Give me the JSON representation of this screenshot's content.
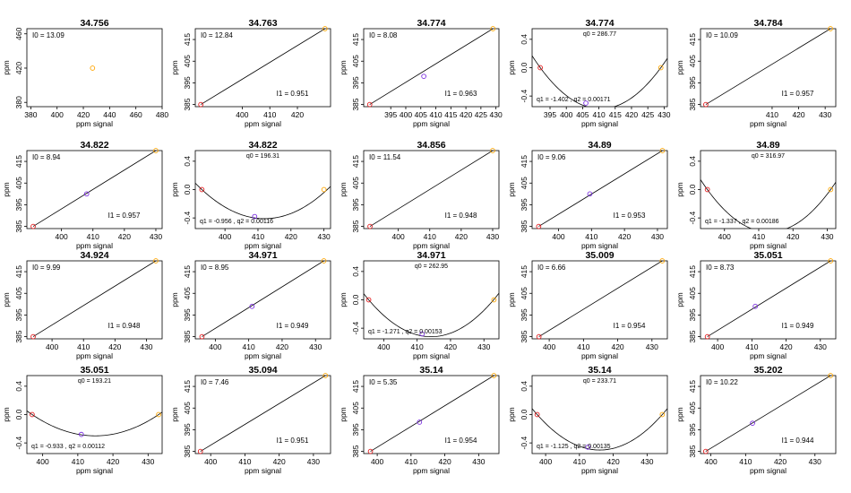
{
  "figure": {
    "xlabel": "ppm signal",
    "ylabel": "ppm"
  },
  "colors": {
    "red": "#e41a1c",
    "purple": "#7b2fe0",
    "orange": "#ffa500",
    "line": "#000000"
  },
  "chart_data": [
    {
      "type": "scatter",
      "title": "34.756",
      "xlim": [
        377,
        480
      ],
      "ylim": [
        375,
        466
      ],
      "xticks": [
        "380",
        "400",
        "420",
        "440",
        "460",
        "480"
      ],
      "yticks": [
        "380",
        "420",
        "460"
      ],
      "annotations": {
        "I0": "I0 =  13.09"
      },
      "points": [
        {
          "x": 427,
          "y": 420,
          "color": "orange"
        }
      ]
    },
    {
      "type": "line",
      "title": "34.763",
      "xlim": [
        383,
        432
      ],
      "ylim": [
        384,
        420
      ],
      "xticks": [
        "400",
        "410",
        "420"
      ],
      "yticks": [
        "385",
        "395",
        "405",
        "415"
      ],
      "annotations": {
        "I0": "I0 =  12.84",
        "I1": "I1 =  0.951"
      },
      "points": [
        {
          "x": 385,
          "y": 385,
          "color": "red"
        },
        {
          "x": 430,
          "y": 420,
          "color": "orange"
        }
      ],
      "curve": {
        "kind": "linear",
        "x0": 385,
        "y0": 385,
        "x1": 430,
        "y1": 420
      }
    },
    {
      "type": "line",
      "title": "34.774",
      "xlim": [
        386,
        431
      ],
      "ylim": [
        384,
        420
      ],
      "xticks": [
        "395",
        "400",
        "405",
        "410",
        "415",
        "420",
        "425",
        "430"
      ],
      "yticks": [
        "385",
        "395",
        "405",
        "415"
      ],
      "annotations": {
        "I0": "I0 =  8.08",
        "I1": "I1 =  0.963"
      },
      "points": [
        {
          "x": 388,
          "y": 385,
          "color": "red"
        },
        {
          "x": 406,
          "y": 398,
          "color": "purple"
        },
        {
          "x": 429,
          "y": 420,
          "color": "orange"
        }
      ],
      "curve": {
        "kind": "linear",
        "x0": 388,
        "y0": 385,
        "x1": 429,
        "y1": 420
      }
    },
    {
      "type": "line",
      "title": "34.774",
      "xlim": [
        389.5,
        431
      ],
      "ylim": [
        -0.55,
        0.55
      ],
      "xticks": [
        "395",
        "400",
        "405",
        "410",
        "415",
        "420",
        "425",
        "430"
      ],
      "yticks": [
        "-0.4",
        "0.0",
        "0.4"
      ],
      "annotations": {
        "q0": "q0 =  286.77",
        "q12": "q1 = -1.402 , q2 =  0.00171"
      },
      "points": [
        {
          "x": 392,
          "y": 0,
          "color": "red"
        },
        {
          "x": 406,
          "y": -0.5,
          "color": "purple"
        },
        {
          "x": 429,
          "y": 0,
          "color": "orange"
        }
      ],
      "curve": {
        "kind": "parabola",
        "xs": 392,
        "ye": 0,
        "xv": 410.5,
        "yv": -0.58
      }
    },
    {
      "type": "line",
      "title": "34.784",
      "xlim": [
        383,
        434
      ],
      "ylim": [
        384,
        420
      ],
      "xticks": [
        "410",
        "420",
        "430"
      ],
      "yticks": [
        "385",
        "395",
        "405",
        "415"
      ],
      "annotations": {
        "I0": "I0 =  10.09",
        "I1": "I1 =  0.957"
      },
      "points": [
        {
          "x": 385,
          "y": 385,
          "color": "red"
        },
        {
          "x": 432,
          "y": 420,
          "color": "orange"
        }
      ],
      "curve": {
        "kind": "linear",
        "x0": 385,
        "y0": 385,
        "x1": 432,
        "y1": 420
      }
    },
    {
      "type": "line",
      "title": "34.822",
      "xlim": [
        389,
        432
      ],
      "ylim": [
        384,
        420
      ],
      "xticks": [
        "400",
        "410",
        "420",
        "430"
      ],
      "yticks": [
        "385",
        "395",
        "405",
        "415"
      ],
      "annotations": {
        "I0": "I0 =  8.94",
        "I1": "I1 =  0.957"
      },
      "points": [
        {
          "x": 391,
          "y": 385,
          "color": "red"
        },
        {
          "x": 408,
          "y": 400,
          "color": "purple"
        },
        {
          "x": 430,
          "y": 420,
          "color": "orange"
        }
      ],
      "curve": {
        "kind": "linear",
        "x0": 391,
        "y0": 385,
        "x1": 430,
        "y1": 420
      }
    },
    {
      "type": "line",
      "title": "34.822",
      "xlim": [
        391,
        432
      ],
      "ylim": [
        -0.55,
        0.55
      ],
      "xticks": [
        "400",
        "410",
        "420",
        "430"
      ],
      "yticks": [
        "-0.4",
        "0.0",
        "0.4"
      ],
      "annotations": {
        "q0": "q0 =  196.31",
        "q12": "q1 = -0.956 , q2 =  0.00116"
      },
      "points": [
        {
          "x": 393,
          "y": 0,
          "color": "red"
        },
        {
          "x": 409,
          "y": -0.38,
          "color": "purple"
        },
        {
          "x": 430,
          "y": 0,
          "color": "orange"
        }
      ],
      "curve": {
        "kind": "parabola",
        "xs": 393,
        "ye": 0,
        "xv": 412,
        "yv": -0.41
      }
    },
    {
      "type": "line",
      "title": "34.856",
      "xlim": [
        389,
        432
      ],
      "ylim": [
        384,
        420
      ],
      "xticks": [
        "400",
        "410",
        "420",
        "430"
      ],
      "yticks": [
        "385",
        "395",
        "405",
        "415"
      ],
      "annotations": {
        "I0": "I0 =  11.54",
        "I1": "I1 =  0.948"
      },
      "points": [
        {
          "x": 391,
          "y": 385,
          "color": "red"
        },
        {
          "x": 430,
          "y": 420,
          "color": "orange"
        }
      ],
      "curve": {
        "kind": "linear",
        "x0": 391,
        "y0": 385,
        "x1": 430,
        "y1": 420
      }
    },
    {
      "type": "line",
      "title": "34.89",
      "xlim": [
        392,
        433
      ],
      "ylim": [
        384,
        420
      ],
      "xticks": [
        "400",
        "410",
        "420",
        "430"
      ],
      "yticks": [
        "385",
        "395",
        "405",
        "415"
      ],
      "annotations": {
        "I0": "I0 =  9.06",
        "I1": "I1 =  0.953"
      },
      "points": [
        {
          "x": 394,
          "y": 385,
          "color": "red"
        },
        {
          "x": 409.5,
          "y": 400,
          "color": "purple"
        },
        {
          "x": 431.5,
          "y": 420,
          "color": "orange"
        }
      ],
      "curve": {
        "kind": "linear",
        "x0": 394,
        "y0": 385,
        "x1": 431.5,
        "y1": 420
      }
    },
    {
      "type": "line",
      "title": "34.89",
      "xlim": [
        393,
        432.5
      ],
      "ylim": [
        -0.55,
        0.55
      ],
      "xticks": [
        "400",
        "410",
        "420",
        "430"
      ],
      "yticks": [
        "-0.4",
        "0.0",
        "0.4"
      ],
      "annotations": {
        "q0": "q0 =  316.97",
        "q12": "q1 = -1.337 , q2 =  0.00186"
      },
      "points": [
        {
          "x": 395,
          "y": 0,
          "color": "red"
        },
        {
          "x": 431,
          "y": 0,
          "color": "orange"
        }
      ],
      "curve": {
        "kind": "parabola",
        "xs": 395,
        "ye": 0,
        "xv": 413,
        "yv": -0.6
      }
    },
    {
      "type": "line",
      "title": "34.924",
      "xlim": [
        392,
        435
      ],
      "ylim": [
        384,
        420
      ],
      "xticks": [
        "400",
        "410",
        "420",
        "430"
      ],
      "yticks": [
        "385",
        "395",
        "405",
        "415"
      ],
      "annotations": {
        "I0": "I0 =  9.99",
        "I1": "I1 =  0.948"
      },
      "points": [
        {
          "x": 394,
          "y": 385,
          "color": "red"
        },
        {
          "x": 433,
          "y": 420,
          "color": "orange"
        }
      ],
      "curve": {
        "kind": "linear",
        "x0": 394,
        "y0": 385,
        "x1": 433,
        "y1": 420
      }
    },
    {
      "type": "line",
      "title": "34.971",
      "xlim": [
        394,
        434.5
      ],
      "ylim": [
        384,
        420
      ],
      "xticks": [
        "400",
        "410",
        "420",
        "430"
      ],
      "yticks": [
        "385",
        "395",
        "405",
        "415"
      ],
      "annotations": {
        "I0": "I0 =  8.95",
        "I1": "I1 =  0.949"
      },
      "points": [
        {
          "x": 396,
          "y": 385,
          "color": "red"
        },
        {
          "x": 411,
          "y": 399,
          "color": "purple"
        },
        {
          "x": 432.5,
          "y": 420,
          "color": "orange"
        }
      ],
      "curve": {
        "kind": "linear",
        "x0": 396,
        "y0": 385,
        "x1": 432.5,
        "y1": 420
      }
    },
    {
      "type": "line",
      "title": "34.971",
      "xlim": [
        394,
        434.5
      ],
      "ylim": [
        -0.55,
        0.55
      ],
      "xticks": [
        "400",
        "410",
        "420",
        "430"
      ],
      "yticks": [
        "-0.4",
        "0.0",
        "0.4"
      ],
      "annotations": {
        "q0": "q0 =  262.95",
        "q12": "q1 = -1.271 , q2 =  0.00153"
      },
      "points": [
        {
          "x": 395.5,
          "y": 0,
          "color": "red"
        },
        {
          "x": 411.5,
          "y": -0.48,
          "color": "purple"
        },
        {
          "x": 433,
          "y": 0,
          "color": "orange"
        }
      ],
      "curve": {
        "kind": "parabola",
        "xs": 395.5,
        "ye": 0,
        "xv": 414.2,
        "yv": -0.52
      }
    },
    {
      "type": "line",
      "title": "35.009",
      "xlim": [
        395,
        434.5
      ],
      "ylim": [
        384,
        420
      ],
      "xticks": [
        "400",
        "410",
        "420",
        "430"
      ],
      "yticks": [
        "385",
        "395",
        "405",
        "415"
      ],
      "annotations": {
        "I0": "I0 =  6.66",
        "I1": "I1 =  0.954"
      },
      "points": [
        {
          "x": 397,
          "y": 385,
          "color": "red"
        },
        {
          "x": 433,
          "y": 420,
          "color": "orange"
        }
      ],
      "curve": {
        "kind": "linear",
        "x0": 397,
        "y0": 385,
        "x1": 433,
        "y1": 420
      }
    },
    {
      "type": "line",
      "title": "35.051",
      "xlim": [
        395,
        434.5
      ],
      "ylim": [
        384,
        420
      ],
      "xticks": [
        "400",
        "410",
        "420",
        "430"
      ],
      "yticks": [
        "385",
        "395",
        "405",
        "415"
      ],
      "annotations": {
        "I0": "I0 =  8.73",
        "I1": "I1 =  0.949"
      },
      "points": [
        {
          "x": 397,
          "y": 385,
          "color": "red"
        },
        {
          "x": 411,
          "y": 399,
          "color": "purple"
        },
        {
          "x": 433,
          "y": 420,
          "color": "orange"
        }
      ],
      "curve": {
        "kind": "linear",
        "x0": 397,
        "y0": 385,
        "x1": 433,
        "y1": 420
      }
    },
    {
      "type": "line",
      "title": "35.051",
      "xlim": [
        395.5,
        434
      ],
      "ylim": [
        -0.55,
        0.55
      ],
      "xticks": [
        "400",
        "410",
        "420",
        "430"
      ],
      "yticks": [
        "-0.4",
        "0.0",
        "0.4"
      ],
      "annotations": {
        "q0": "q0 =  193.21",
        "q12": "q1 = -0.933 , q2 =  0.00112"
      },
      "points": [
        {
          "x": 397,
          "y": 0,
          "color": "red"
        },
        {
          "x": 411,
          "y": -0.28,
          "color": "purple"
        },
        {
          "x": 433,
          "y": 0,
          "color": "orange"
        }
      ],
      "curve": {
        "kind": "parabola",
        "xs": 397,
        "ye": 0,
        "xv": 415,
        "yv": -0.3
      }
    },
    {
      "type": "line",
      "title": "35.094",
      "xlim": [
        395.5,
        435
      ],
      "ylim": [
        384,
        420
      ],
      "xticks": [
        "400",
        "410",
        "420",
        "430"
      ],
      "yticks": [
        "385",
        "395",
        "405",
        "415"
      ],
      "annotations": {
        "I0": "I0 =  7.46",
        "I1": "I1 =  0.951"
      },
      "points": [
        {
          "x": 397,
          "y": 385,
          "color": "red"
        },
        {
          "x": 433.5,
          "y": 420,
          "color": "orange"
        }
      ],
      "curve": {
        "kind": "linear",
        "x0": 397,
        "y0": 385,
        "x1": 433.5,
        "y1": 420
      }
    },
    {
      "type": "line",
      "title": "35.14",
      "xlim": [
        396,
        436
      ],
      "ylim": [
        384,
        420
      ],
      "xticks": [
        "400",
        "410",
        "420",
        "430"
      ],
      "yticks": [
        "385",
        "395",
        "405",
        "415"
      ],
      "annotations": {
        "I0": "I0 =  5.35",
        "I1": "I1 =  0.954"
      },
      "points": [
        {
          "x": 398,
          "y": 385,
          "color": "red"
        },
        {
          "x": 412.5,
          "y": 398.5,
          "color": "purple"
        },
        {
          "x": 434.5,
          "y": 420,
          "color": "orange"
        }
      ],
      "curve": {
        "kind": "linear",
        "x0": 398,
        "y0": 385,
        "x1": 434.5,
        "y1": 420
      }
    },
    {
      "type": "line",
      "title": "35.14",
      "xlim": [
        396,
        436
      ],
      "ylim": [
        -0.55,
        0.55
      ],
      "xticks": [
        "400",
        "410",
        "420",
        "430"
      ],
      "yticks": [
        "-0.4",
        "0.0",
        "0.4"
      ],
      "annotations": {
        "q0": "q0 =  233.71",
        "q12": "q1 = -1.125 , q2 =  0.00135"
      },
      "points": [
        {
          "x": 397.5,
          "y": 0,
          "color": "red"
        },
        {
          "x": 412.5,
          "y": -0.46,
          "color": "purple"
        },
        {
          "x": 434.5,
          "y": 0,
          "color": "orange"
        }
      ],
      "curve": {
        "kind": "parabola",
        "xs": 397.5,
        "ye": 0,
        "xv": 416,
        "yv": -0.5
      }
    },
    {
      "type": "line",
      "title": "35.202",
      "xlim": [
        397,
        436
      ],
      "ylim": [
        384,
        420
      ],
      "xticks": [
        "400",
        "410",
        "420",
        "430"
      ],
      "yticks": [
        "385",
        "395",
        "405",
        "415"
      ],
      "annotations": {
        "I0": "I0 =  10.22",
        "I1": "I1 =  0.944"
      },
      "points": [
        {
          "x": 398.5,
          "y": 385,
          "color": "red"
        },
        {
          "x": 412,
          "y": 398,
          "color": "purple"
        },
        {
          "x": 434.5,
          "y": 420,
          "color": "orange"
        }
      ],
      "curve": {
        "kind": "linear",
        "x0": 398.5,
        "y0": 385,
        "x1": 434.5,
        "y1": 420
      }
    }
  ]
}
